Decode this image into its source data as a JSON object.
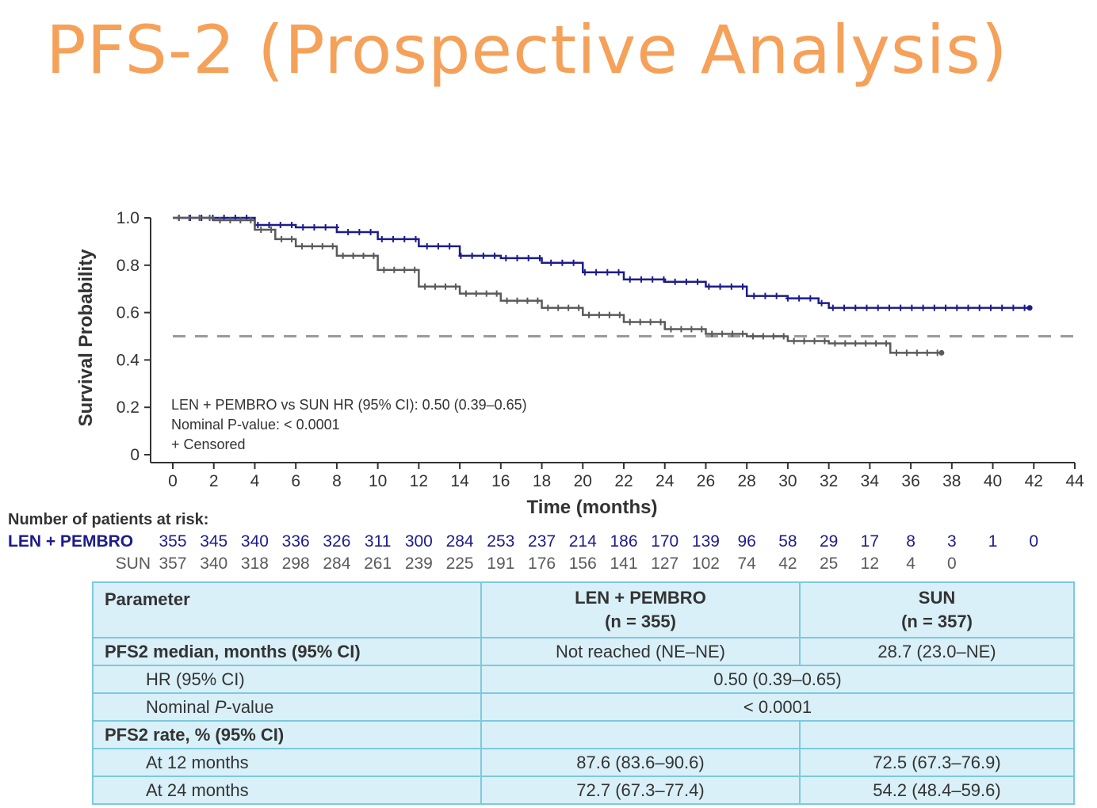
{
  "slide": {
    "title": "PFS-2 (Prospective Analysis)"
  },
  "colors": {
    "title": "#f5a15a",
    "len_pembro": "#1c1c8c",
    "sun": "#5a5a5a",
    "table_bg": "#d9f0f8",
    "table_border": "#7cc9e0"
  },
  "chart_data": {
    "type": "line",
    "xlabel": "Time (months)",
    "ylabel": "Survival Probability",
    "xlim": [
      0,
      44
    ],
    "ylim": [
      0,
      1.0
    ],
    "x_ticks": [
      0,
      2,
      4,
      6,
      8,
      10,
      12,
      14,
      16,
      18,
      20,
      22,
      24,
      26,
      28,
      30,
      32,
      34,
      36,
      38,
      40,
      42,
      44
    ],
    "y_ticks": [
      0,
      0.2,
      0.4,
      0.6,
      0.8,
      1.0
    ],
    "y_tick_labels": [
      "0",
      "0.2",
      "0.4",
      "0.6",
      "0.8",
      "1.0"
    ],
    "reference_line": {
      "y": 0.5,
      "style": "dashed"
    },
    "annotations": [
      "LEN + PEMBRO vs SUN HR (95% CI): 0.50 (0.39–0.65)",
      "Nominal P-value: < 0.0001",
      "+ Censored"
    ],
    "series": [
      {
        "name": "LEN + PEMBRO",
        "color": "#1c1c8c",
        "x": [
          0,
          2,
          4,
          6,
          8,
          10,
          12,
          14,
          16,
          18,
          20,
          22,
          24,
          26,
          28,
          30,
          31.5,
          32,
          34,
          36,
          38,
          40,
          41.8
        ],
        "y": [
          1.0,
          1.0,
          0.97,
          0.96,
          0.94,
          0.91,
          0.88,
          0.84,
          0.83,
          0.81,
          0.77,
          0.74,
          0.73,
          0.71,
          0.67,
          0.66,
          0.64,
          0.62,
          0.62,
          0.62,
          0.62,
          0.62,
          0.62
        ]
      },
      {
        "name": "SUN",
        "color": "#5a5a5a",
        "x": [
          0,
          2,
          4,
          5,
          6,
          8,
          10,
          12,
          14,
          16,
          18,
          20,
          22,
          24,
          26,
          28,
          30,
          32,
          34,
          34.6,
          35,
          37.5
        ],
        "y": [
          1.0,
          0.99,
          0.95,
          0.91,
          0.88,
          0.84,
          0.78,
          0.71,
          0.68,
          0.65,
          0.62,
          0.59,
          0.56,
          0.53,
          0.51,
          0.5,
          0.48,
          0.47,
          0.47,
          0.47,
          0.43,
          0.43
        ]
      }
    ]
  },
  "risk_table": {
    "header": "Number of patients at risk:",
    "rows": [
      {
        "label": "LEN + PEMBRO",
        "color": "#1c1c8c",
        "values": [
          "355",
          "345",
          "340",
          "336",
          "326",
          "311",
          "300",
          "284",
          "253",
          "237",
          "214",
          "186",
          "170",
          "139",
          "96",
          "58",
          "29",
          "17",
          "8",
          "3",
          "1",
          "0"
        ]
      },
      {
        "label": "SUN",
        "color": "#5a5a5a",
        "values": [
          "357",
          "340",
          "318",
          "298",
          "284",
          "261",
          "239",
          "225",
          "191",
          "176",
          "156",
          "141",
          "127",
          "102",
          "74",
          "42",
          "25",
          "12",
          "4",
          "0"
        ]
      }
    ]
  },
  "param_table": {
    "header": {
      "c1": "Parameter",
      "c2_line1": "LEN + PEMBRO",
      "c2_line2": "(n = 355)",
      "c3_line1": "SUN",
      "c3_line2": "(n = 357)"
    },
    "pfs2_median": {
      "label": "PFS2 median, months (95% CI)",
      "len": "Not reached (NE–NE)",
      "sun": "28.7 (23.0–NE)"
    },
    "hr": {
      "label": "HR (95% CI)",
      "value": "0.50  (0.39–0.65)"
    },
    "pvalue": {
      "label_pre": "Nominal ",
      "label_italic": "P",
      "label_post": "-value",
      "value": "< 0.0001"
    },
    "pfs2_rate": {
      "label": "PFS2 rate, % (95% CI)"
    },
    "m12": {
      "label": "At 12 months",
      "len": "87.6 (83.6–90.6)",
      "sun": "72.5 (67.3–76.9)"
    },
    "m24": {
      "label": "At 24 months",
      "len": "72.7 (67.3–77.4)",
      "sun": "54.2 (48.4–59.6)"
    }
  }
}
